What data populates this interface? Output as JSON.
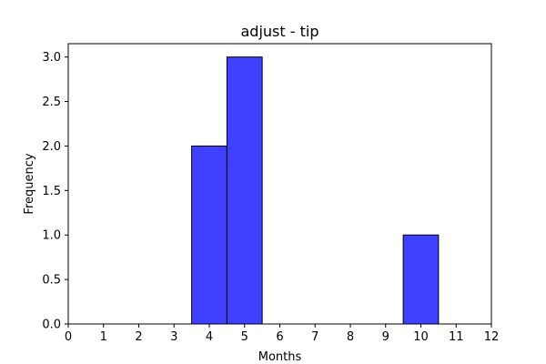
{
  "chart_data": {
    "type": "bar",
    "title": "adjust - tip",
    "xlabel": "Months",
    "ylabel": "Frequency",
    "xlim": [
      0,
      12
    ],
    "ylim": [
      0,
      3.15
    ],
    "x_ticks": [
      "0",
      "1",
      "2",
      "3",
      "4",
      "5",
      "6",
      "7",
      "8",
      "9",
      "10",
      "11",
      "12"
    ],
    "y_ticks": [
      "0.0",
      "0.5",
      "1.0",
      "1.5",
      "2.0",
      "2.5",
      "3.0"
    ],
    "bins": [
      {
        "x0": 3.5,
        "x1": 4.5,
        "value": 2
      },
      {
        "x0": 4.5,
        "x1": 5.5,
        "value": 3
      },
      {
        "x0": 9.5,
        "x1": 10.5,
        "value": 1
      }
    ],
    "bar_color": "#4040ff",
    "edge_color": "#000000",
    "grid": false,
    "legend": "none"
  }
}
